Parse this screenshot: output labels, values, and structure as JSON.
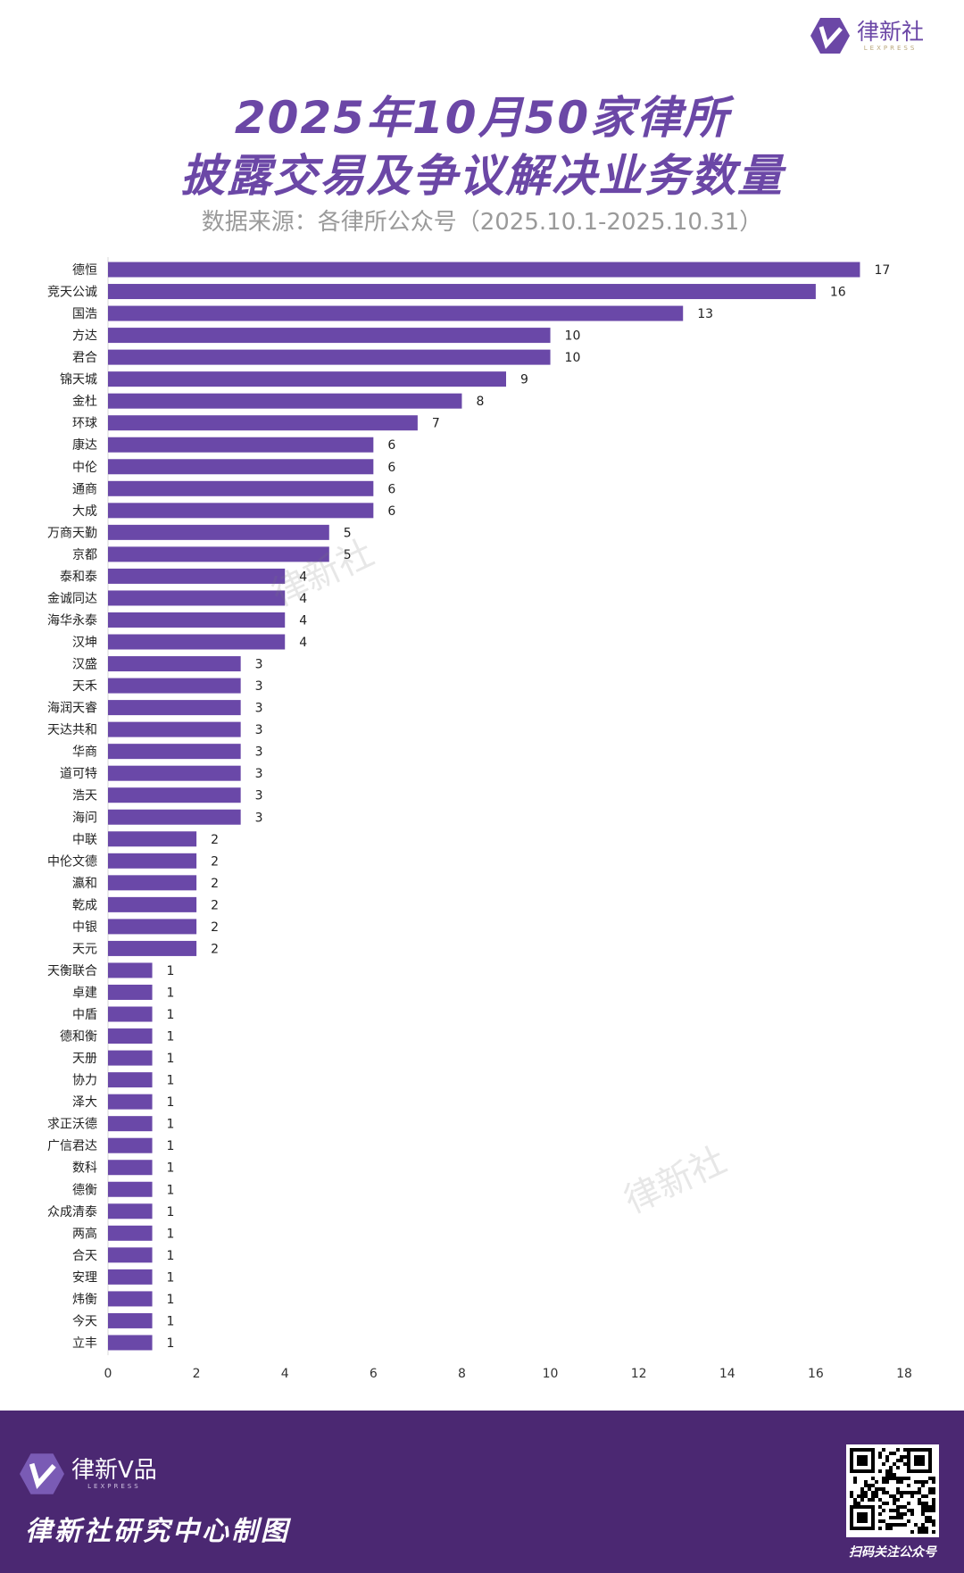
{
  "brand": {
    "logo_name": "律新社",
    "logo_sub": "LEXPRESS",
    "watermark": "律新社"
  },
  "title_line1": "2025年10月50家律所",
  "title_line2": "披露交易及争议解决业务数量",
  "subtitle": "数据来源：各律所公众号（2025.10.1-2025.10.31）",
  "colors": {
    "bar": "#6a48a8",
    "title": "#6b47a6",
    "footer": "#4b2872"
  },
  "chart_data": {
    "type": "bar",
    "orientation": "horizontal",
    "categories": [
      "德恒",
      "竞天公诚",
      "国浩",
      "方达",
      "君合",
      "锦天城",
      "金杜",
      "环球",
      "康达",
      "中伦",
      "通商",
      "大成",
      "万商天勤",
      "京都",
      "泰和泰",
      "金诚同达",
      "海华永泰",
      "汉坤",
      "汉盛",
      "天禾",
      "海润天睿",
      "天达共和",
      "华商",
      "道可特",
      "浩天",
      "海问",
      "中联",
      "中伦文德",
      "瀛和",
      "乾成",
      "中银",
      "天元",
      "天衡联合",
      "卓建",
      "中盾",
      "德和衡",
      "天册",
      "协力",
      "泽大",
      "求正沃德",
      "广信君达",
      "数科",
      "德衡",
      "众成清泰",
      "两高",
      "合天",
      "安理",
      "炜衡",
      "今天",
      "立丰"
    ],
    "values": [
      17,
      16,
      13,
      10,
      10,
      9,
      8,
      7,
      6,
      6,
      6,
      6,
      5,
      5,
      4,
      4,
      4,
      4,
      3,
      3,
      3,
      3,
      3,
      3,
      3,
      3,
      2,
      2,
      2,
      2,
      2,
      2,
      1,
      1,
      1,
      1,
      1,
      1,
      1,
      1,
      1,
      1,
      1,
      1,
      1,
      1,
      1,
      1,
      1,
      1
    ],
    "xlim": [
      0,
      18
    ],
    "xticks": [
      "0",
      "2",
      "4",
      "6",
      "8",
      "10",
      "12",
      "14",
      "16",
      "18"
    ],
    "grid": false,
    "data_labels": true
  },
  "footer": {
    "logo_name": "律新V品",
    "logo_sub": "LEXPRESS",
    "credit": "律新社研究中心制图",
    "qr_caption": "扫码关注公众号"
  }
}
